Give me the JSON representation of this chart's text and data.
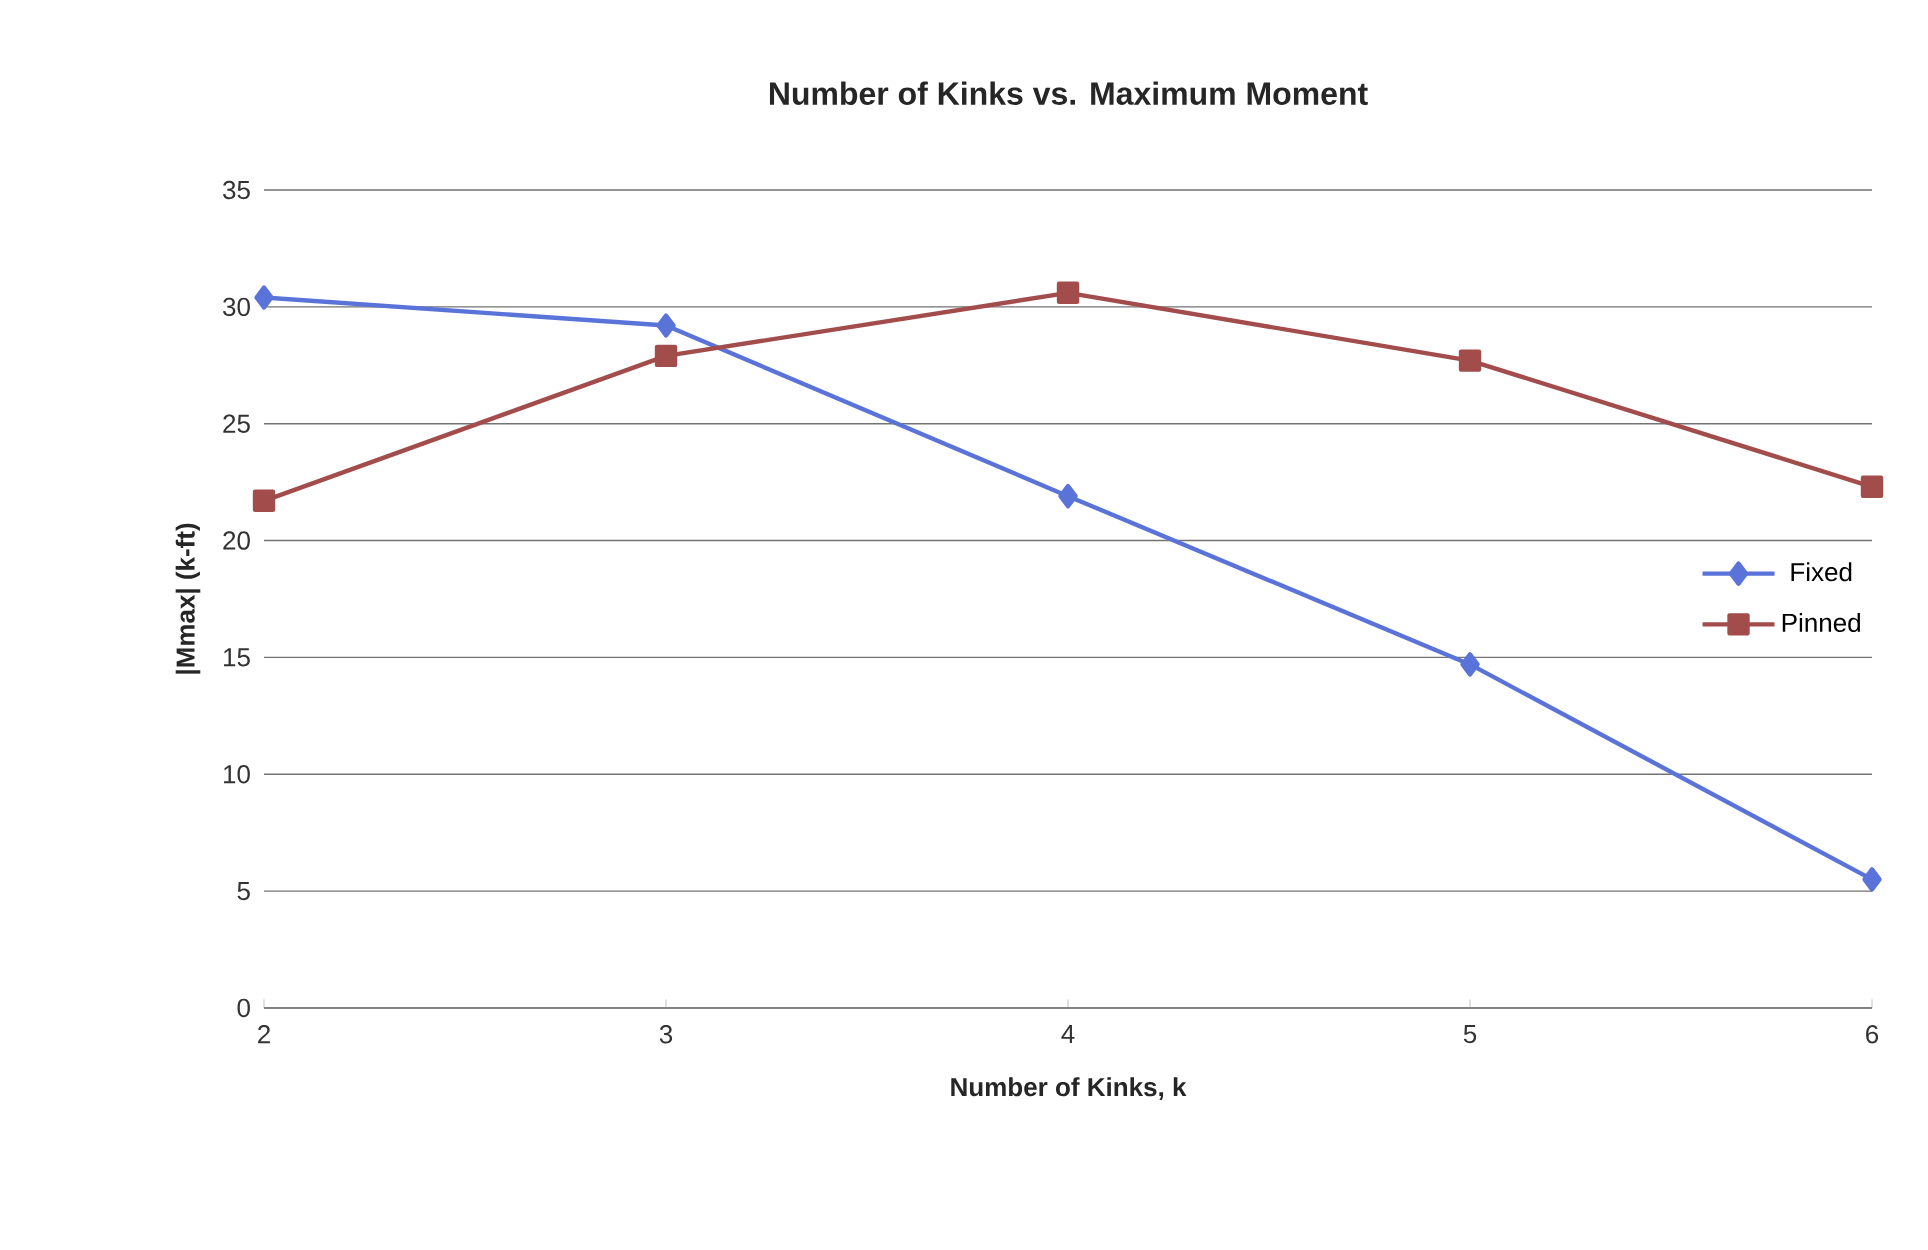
{
  "chart_data": {
    "type": "line",
    "title": "Number of Kinks vs. Maximum Moment",
    "xlabel": "Number of Kinks, k",
    "ylabel": "|Mmax| (k-ft)",
    "x": [
      2,
      3,
      4,
      5,
      6
    ],
    "series": [
      {
        "name": "Fixed",
        "color": "#5a73d9",
        "marker": "diamond",
        "values": [
          30.4,
          29.2,
          21.9,
          14.7,
          5.5
        ]
      },
      {
        "name": "Pinned",
        "color": "#a34c4c",
        "marker": "square",
        "values": [
          21.7,
          27.9,
          30.6,
          27.7,
          22.3
        ]
      }
    ],
    "xlim": [
      2,
      6
    ],
    "xticks": [
      2,
      3,
      4,
      5,
      6
    ],
    "ylim": [
      0,
      35
    ],
    "yticks": [
      0,
      5,
      10,
      15,
      20,
      25,
      30,
      35
    ],
    "grid": "y",
    "legend": "right",
    "line_style": "solid"
  }
}
